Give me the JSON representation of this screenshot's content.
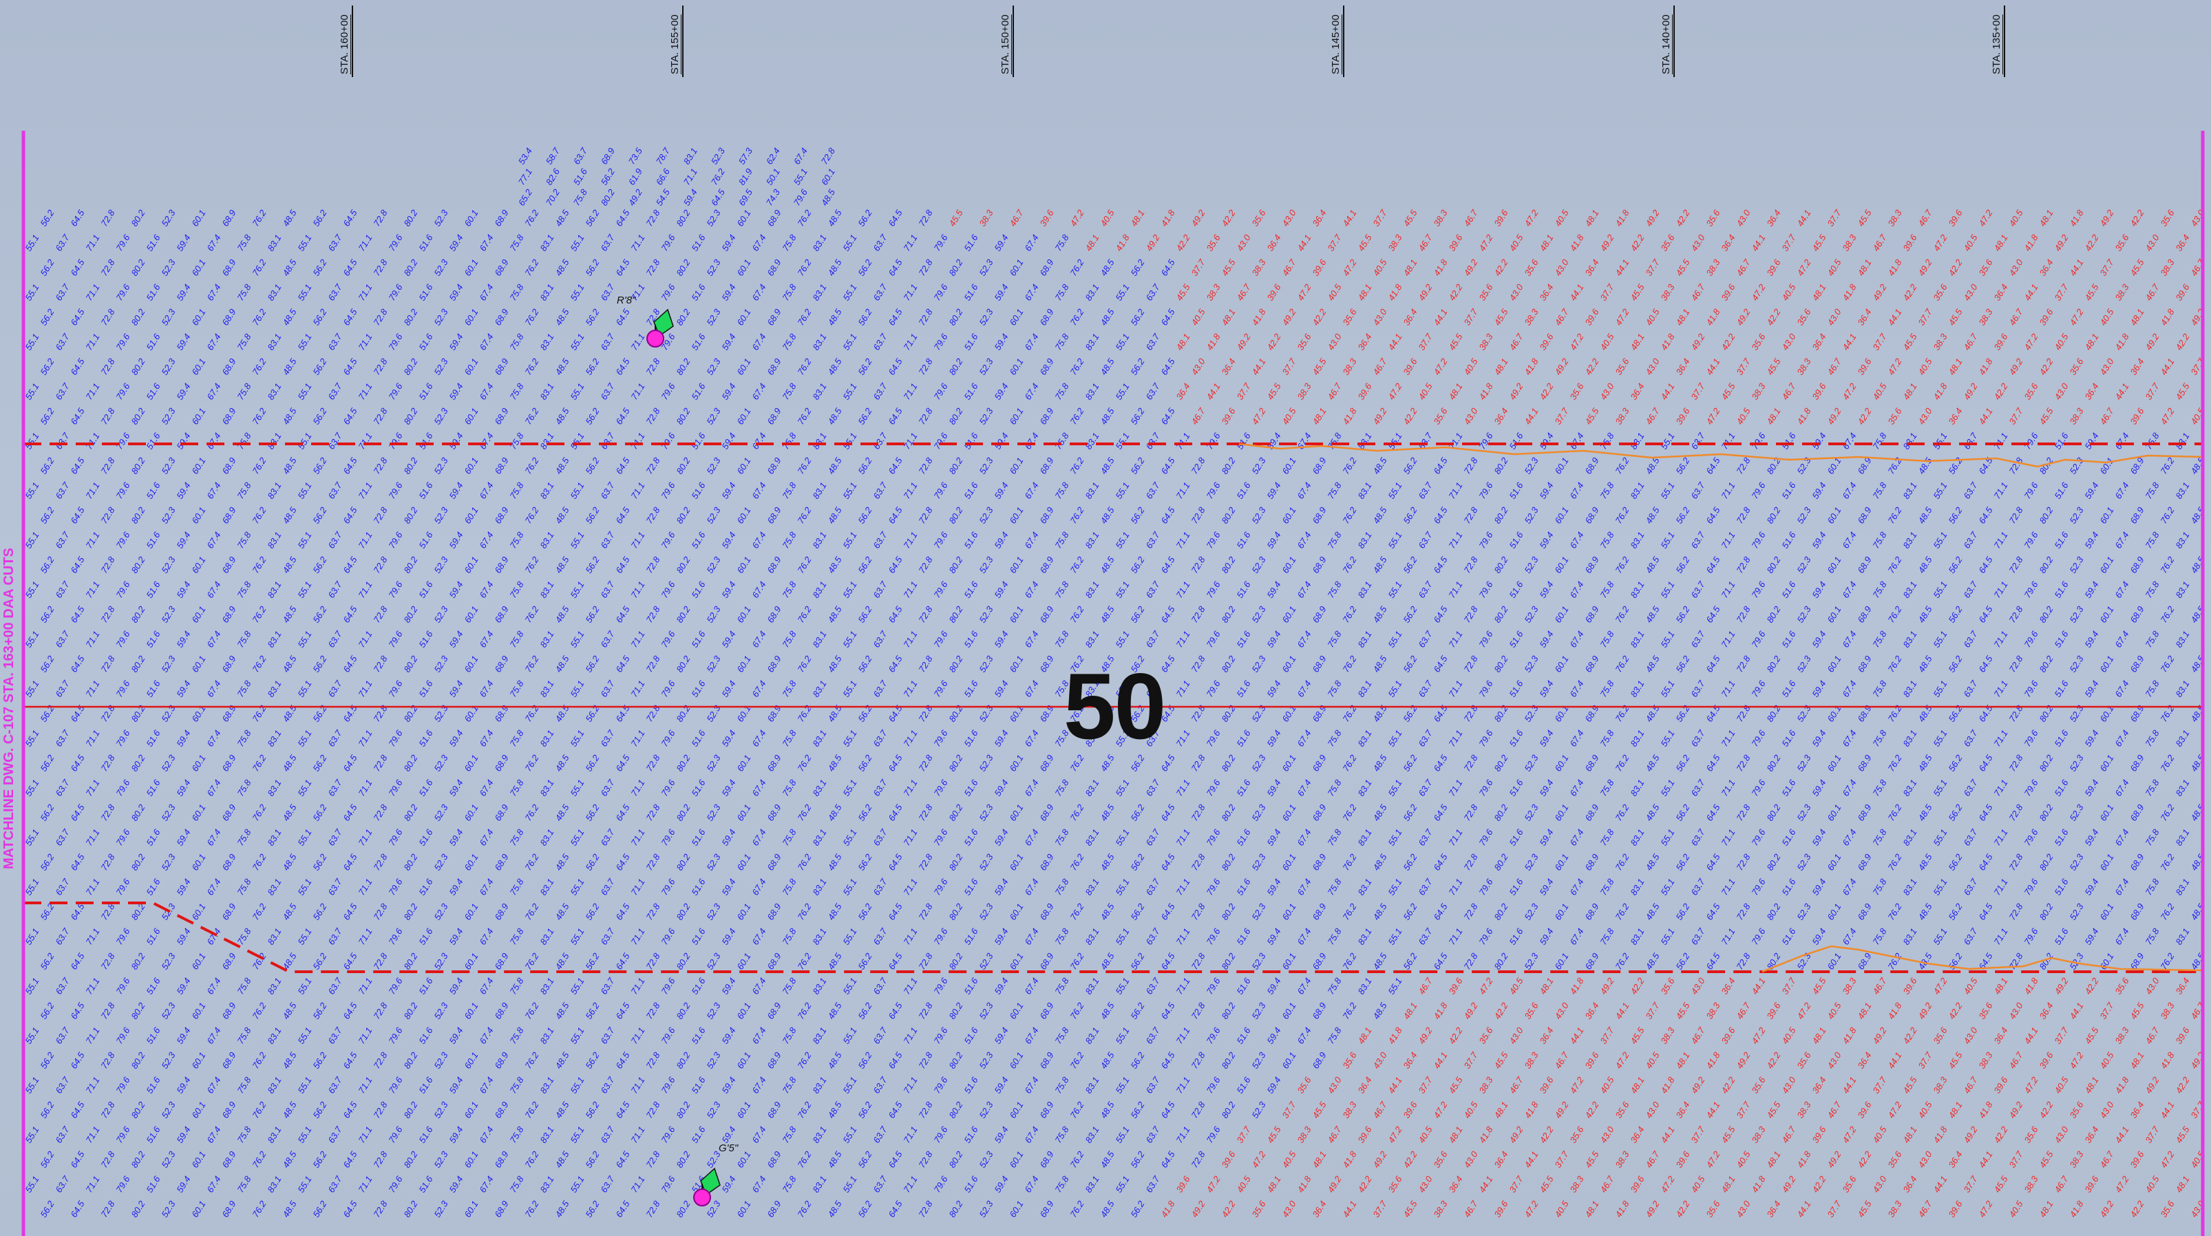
{
  "stations": [
    {
      "label": "STA. 160+00"
    },
    {
      "label": "STA. 155+00"
    },
    {
      "label": "STA. 150+00"
    },
    {
      "label": "STA. 145+00"
    },
    {
      "label": "STA. 140+00"
    },
    {
      "label": "STA. 135+00"
    }
  ],
  "sheet_number": "50",
  "matchline_text": "MATCHLINE DWG. C-107 STA. 163+00 DAA CUTS",
  "markers": [
    {
      "label": "R'8\""
    },
    {
      "label": "G'5\""
    }
  ],
  "soundings": {
    "deep_color": "#1f1ff0",
    "shallow_color": "#ef2a2a",
    "deep_values": [
      "48.5",
      "49.2",
      "50.1",
      "51.6",
      "52.3",
      "53.4",
      "54.5",
      "55.1",
      "56.2",
      "57.3",
      "58.7",
      "59.4",
      "60.1",
      "61.9",
      "62.4",
      "63.7",
      "64.5",
      "65.2",
      "66.6",
      "67.4",
      "68.9",
      "69.5",
      "70.2",
      "71.1",
      "72.8",
      "73.5",
      "74.3",
      "75.8",
      "76.2",
      "77.1",
      "78.7",
      "79.6",
      "80.2",
      "81.9",
      "82.6",
      "83.1"
    ],
    "shallow_values": [
      "37.7",
      "38.3",
      "39.6",
      "40.5",
      "41.8",
      "42.2",
      "43.0",
      "44.1",
      "45.5",
      "46.7",
      "47.2",
      "48.1",
      "49.2",
      "35.6",
      "36.4"
    ]
  },
  "colors": {
    "channel_line": "#e01515",
    "toe_line": "#f08a2a",
    "matchline": "#e236e2"
  }
}
